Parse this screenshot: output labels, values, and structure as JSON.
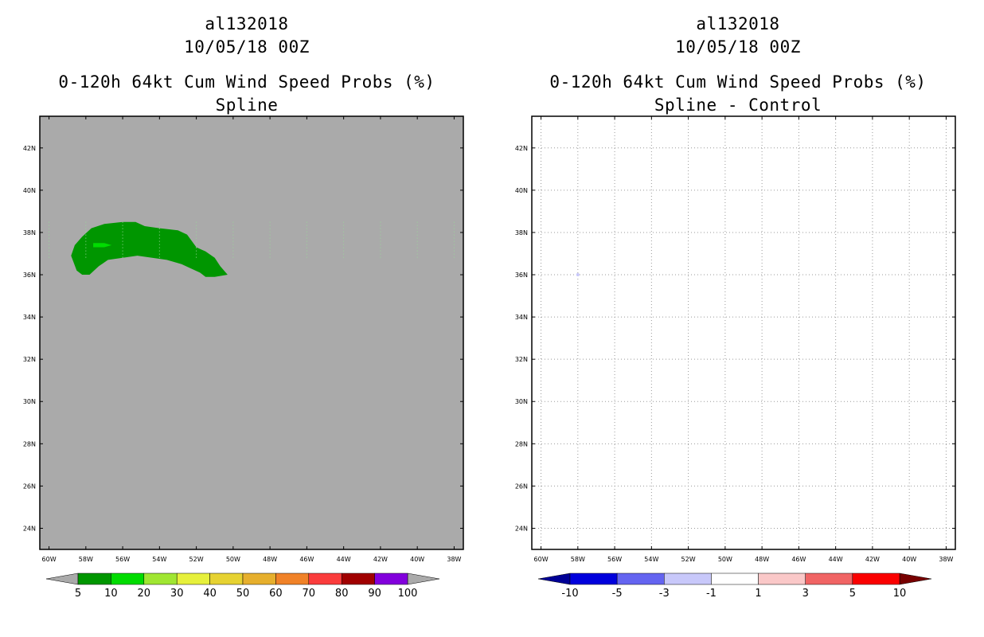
{
  "panels": [
    {
      "storm_id": "al132018",
      "datetime": "10/05/18 00Z",
      "product": "0-120h 64kt Cum Wind Speed Probs (%)",
      "subtitle": "Spline",
      "background": "#aaaaaa",
      "grid": false,
      "colorbar": {
        "labels": [
          "5",
          "10",
          "20",
          "30",
          "40",
          "50",
          "60",
          "70",
          "80",
          "90",
          "100"
        ],
        "colors": [
          "#009600",
          "#00dc00",
          "#a0e632",
          "#e6f03c",
          "#e6d232",
          "#e6af2d",
          "#f08228",
          "#fa3c3c",
          "#a00000",
          "#8200dc"
        ],
        "ends": [
          "#aaaaaa",
          "#aaaaaa"
        ]
      }
    },
    {
      "storm_id": "al132018",
      "datetime": "10/05/18 00Z",
      "product": "0-120h 64kt Cum Wind Speed Probs (%)",
      "subtitle": "Spline - Control",
      "background": "#ffffff",
      "grid": true,
      "colorbar": {
        "labels": [
          "-10",
          "-5",
          "-3",
          "-1",
          "1",
          "3",
          "5",
          "10"
        ],
        "colors": [
          "#0000dc",
          "#6464f0",
          "#c8c8fa",
          "#ffffff",
          "#fac8c8",
          "#f06464",
          "#fa0000"
        ],
        "ends": [
          "#000096",
          "#780000"
        ]
      }
    }
  ],
  "map": {
    "lon_labels": [
      "60W",
      "58W",
      "56W",
      "54W",
      "52W",
      "50W",
      "48W",
      "46W",
      "44W",
      "42W",
      "40W",
      "38W"
    ],
    "lon_values": [
      -60,
      -58,
      -56,
      -54,
      -52,
      -50,
      -48,
      -46,
      -44,
      -42,
      -40,
      -38
    ],
    "lat_labels": [
      "24N",
      "26N",
      "28N",
      "30N",
      "32N",
      "34N",
      "36N",
      "38N",
      "40N",
      "42N"
    ],
    "lat_values": [
      24,
      26,
      28,
      30,
      32,
      34,
      36,
      38,
      40,
      42
    ],
    "lon_range": [
      -60.5,
      -37.5
    ],
    "lat_range": [
      23,
      43.5
    ]
  },
  "prob_region": {
    "level": "5-10",
    "color": "#009600",
    "inner_color": "#00dc00",
    "outline": [
      [
        -58.5,
        36.2
      ],
      [
        -58.2,
        36.0
      ],
      [
        -57.8,
        36.0
      ],
      [
        -57.3,
        36.4
      ],
      [
        -56.8,
        36.7
      ],
      [
        -56.0,
        36.8
      ],
      [
        -55.2,
        36.9
      ],
      [
        -54.4,
        36.8
      ],
      [
        -53.6,
        36.7
      ],
      [
        -52.8,
        36.5
      ],
      [
        -52.3,
        36.3
      ],
      [
        -51.8,
        36.1
      ],
      [
        -51.5,
        35.9
      ],
      [
        -51.0,
        35.9
      ],
      [
        -50.3,
        36.0
      ],
      [
        -50.7,
        36.4
      ],
      [
        -51.0,
        36.8
      ],
      [
        -51.5,
        37.1
      ],
      [
        -52.0,
        37.3
      ],
      [
        -52.5,
        37.9
      ],
      [
        -53.0,
        38.1
      ],
      [
        -54.0,
        38.2
      ],
      [
        -54.8,
        38.3
      ],
      [
        -55.3,
        38.5
      ],
      [
        -56.0,
        38.5
      ],
      [
        -57.0,
        38.4
      ],
      [
        -57.7,
        38.2
      ],
      [
        -58.2,
        37.8
      ],
      [
        -58.6,
        37.4
      ],
      [
        -58.8,
        36.9
      ]
    ],
    "inner": [
      [
        -57.6,
        37.5
      ],
      [
        -57.0,
        37.5
      ],
      [
        -56.6,
        37.4
      ],
      [
        -57.0,
        37.3
      ],
      [
        -57.6,
        37.3
      ]
    ]
  },
  "diff_speck": {
    "lon": -58.0,
    "lat": 36.0,
    "color": "#c8c8fa"
  }
}
